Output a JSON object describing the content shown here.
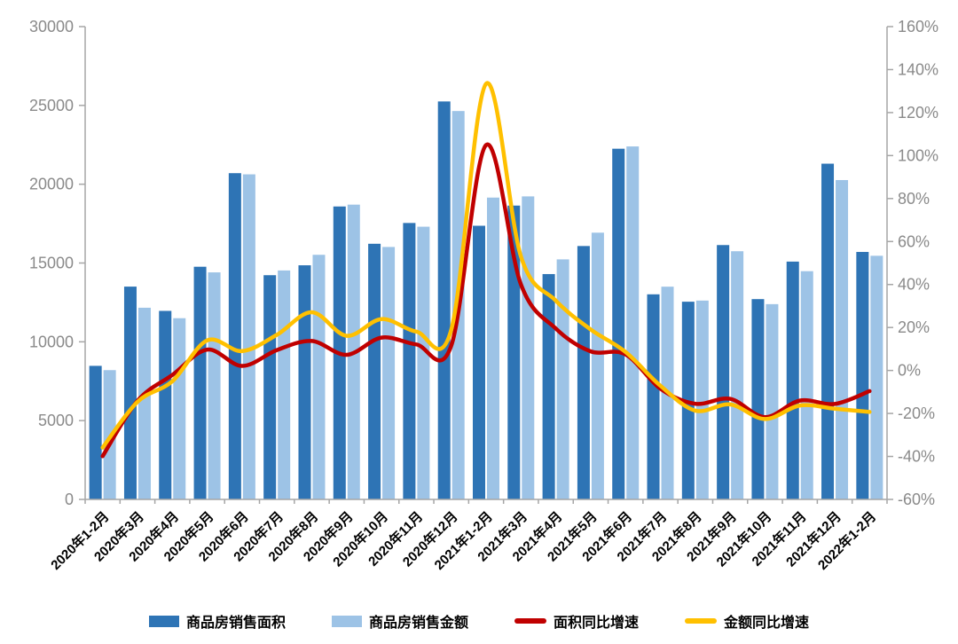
{
  "chart_data": {
    "type": "combo-bar-line",
    "title": "",
    "categories": [
      "2020年1-2月",
      "2020年3月",
      "2020年4月",
      "2020年5月",
      "2020年6月",
      "2020年7月",
      "2020年8月",
      "2020年9月",
      "2020年10月",
      "2020年11月",
      "2020年12月",
      "2021年1-2月",
      "2021年3月",
      "2021年4月",
      "2021年5月",
      "2021年6月",
      "2021年7月",
      "2021年8月",
      "2021年9月",
      "2021年10月",
      "2021年11月",
      "2021年12月",
      "2022年1-2月"
    ],
    "series": [
      {
        "name": "商品房销售面积",
        "type": "bar",
        "axis": "left",
        "color": "#2E74B5",
        "values": [
          8475,
          13503,
          11962,
          14763,
          20701,
          14227,
          14855,
          18587,
          16221,
          17540,
          25252,
          17363,
          18644,
          14298,
          16078,
          22252,
          13013,
          12545,
          16139,
          12709,
          15090,
          21302,
          15703
        ]
      },
      {
        "name": "商品房销售金额",
        "type": "bar",
        "axis": "left",
        "color": "#9DC3E6",
        "values": [
          8203,
          12162,
          11498,
          14406,
          20626,
          14527,
          15521,
          18704,
          16018,
          17304,
          24644,
          19151,
          19227,
          15231,
          16925,
          22397,
          13499,
          12617,
          15748,
          12390,
          14482,
          20263,
          15459
        ]
      },
      {
        "name": "面积同比增速",
        "type": "line",
        "axis": "right",
        "color": "#C00000",
        "values": [
          -39.9,
          -14.1,
          -2.1,
          9.7,
          2.1,
          9.5,
          13.7,
          7.3,
          15.3,
          12.1,
          11.5,
          104.9,
          40.0,
          19.5,
          8.9,
          7.5,
          -8.5,
          -15.5,
          -13.2,
          -21.7,
          -14.0,
          -15.6,
          -9.6
        ]
      },
      {
        "name": "金额同比增速",
        "type": "line",
        "axis": "right",
        "color": "#FFC000",
        "values": [
          -35.9,
          -14.6,
          -5.0,
          14.0,
          9.0,
          16.6,
          27.1,
          16.1,
          23.9,
          18.1,
          18.9,
          133.4,
          53.0,
          32.5,
          19.1,
          8.6,
          -7.1,
          -18.7,
          -15.8,
          -22.6,
          -16.3,
          -17.8,
          -19.3
        ]
      }
    ],
    "left_axis": {
      "min": 0,
      "max": 30000,
      "step": 5000,
      "ticks": [
        "0",
        "5000",
        "10000",
        "15000",
        "20000",
        "25000",
        "30000"
      ]
    },
    "right_axis": {
      "min": -60,
      "max": 160,
      "step": 20,
      "ticks": [
        "-60%",
        "-40%",
        "-20%",
        "0%",
        "20%",
        "40%",
        "60%",
        "80%",
        "100%",
        "120%",
        "140%",
        "160%"
      ]
    },
    "grid": false,
    "legend_position": "bottom"
  },
  "colors": {
    "axis_line": "#a6a6a6",
    "y_tick_text": "#8a8a8a",
    "x_tick_text": "#000000",
    "background": "#ffffff"
  }
}
